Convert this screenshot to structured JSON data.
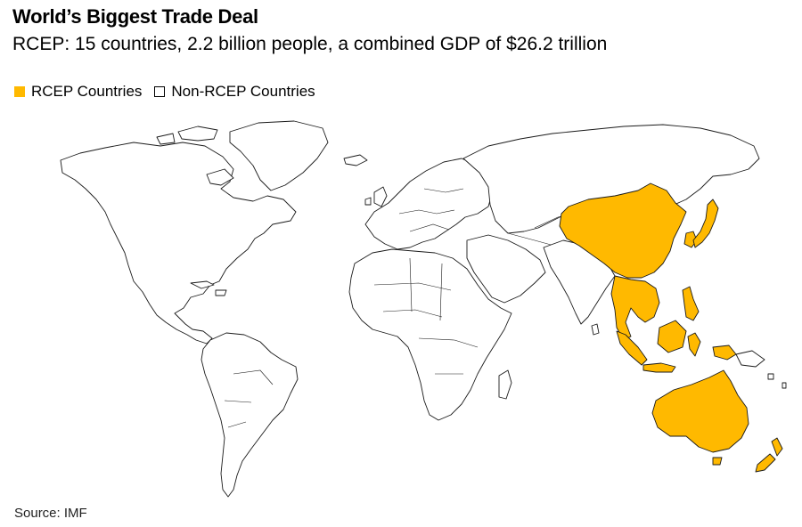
{
  "title": "World’s Biggest Trade Deal",
  "subtitle": "RCEP: 15 countries, 2.2 billion people, a combined GDP of $26.2 trillion",
  "legend": {
    "rcep_label": "RCEP Countries",
    "non_rcep_label": "Non-RCEP Countries"
  },
  "colors": {
    "rcep": "#FFB900",
    "non_rcep": "#FFFFFF",
    "outline": "#1A1A1A"
  },
  "source": "Source: IMF"
}
